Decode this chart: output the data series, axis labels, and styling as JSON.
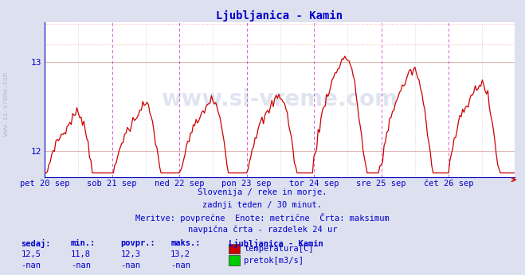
{
  "title": "Ljubljanica - Kamin",
  "title_color": "#0000cc",
  "bg_color": "#dde0ee",
  "plot_bg_color": "#ffffff",
  "line_color": "#cc0000",
  "grid_h_color": "#ddaaaa",
  "grid_v_color": "#ddccdd",
  "axis_color": "#0000bb",
  "label_color": "#0000cc",
  "max_line_color": "#ffaaaa",
  "vline_solid_color": "#cc44cc",
  "vline_dot_color": "#aaaaaa",
  "watermark_color": "#7788bb",
  "xlabel_days": [
    "pet 20 sep",
    "sob 21 sep",
    "ned 22 sep",
    "pon 23 sep",
    "tor 24 sep",
    "sre 25 sep",
    "čet 26 sep"
  ],
  "ymin": 11.7,
  "ymax": 13.45,
  "yticks": [
    12,
    13
  ],
  "max_value": 13.2,
  "footer_line1": "Slovenija / reke in morje.",
  "footer_line2": "zadnji teden / 30 minut.",
  "footer_line3": "Meritve: povprečne  Enote: metrične  Črta: maksimum",
  "footer_line4": "navpična črta - razdelek 24 ur",
  "stats_header": [
    "sedaj:",
    "min.:",
    "povpr.:",
    "maks.:"
  ],
  "stats_temp": [
    "12,5",
    "11,8",
    "12,3",
    "13,2"
  ],
  "stats_flow": [
    "-nan",
    "-nan",
    "-nan",
    "-nan"
  ],
  "legend_title": "Ljubljanica - Kamin",
  "legend_items": [
    "temperatura[C]",
    "pretok[m3/s]"
  ],
  "legend_colors": [
    "#cc0000",
    "#00cc00"
  ],
  "n_points": 336,
  "day_tick_pos": [
    0,
    48,
    96,
    144,
    192,
    240,
    288
  ],
  "noon_tick_pos": [
    24,
    72,
    120,
    168,
    216,
    264,
    312
  ]
}
